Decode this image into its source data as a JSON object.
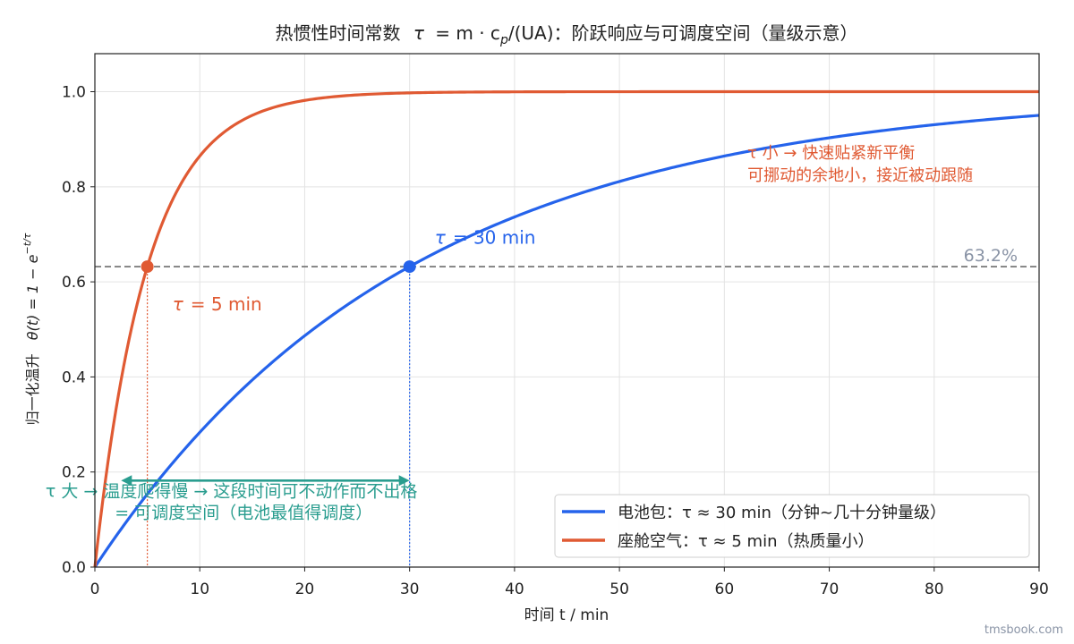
{
  "chart_data": {
    "type": "line",
    "title": "热惯性时间常数 τ = m · c_p/(UA)：阶跃响应与可调度空间（量级示意）",
    "title_parts": {
      "prefix": "热惯性时间常数",
      "tau": "τ",
      "eq": "= m · c",
      "sub": "p",
      "suffix": "/(UA)：阶跃响应与可调度空间（量级示意）"
    },
    "xlabel": "时间 t / min",
    "ylabel": "归一化温升  θ(t) = 1 − e^{−t/τ}",
    "ylabel_parts": {
      "main": "归一化温升",
      "formula": "θ(t) = 1 − e",
      "exp": "−t/τ"
    },
    "xlim": [
      0,
      90
    ],
    "ylim": [
      0,
      1.08
    ],
    "xticks": [
      0,
      10,
      20,
      30,
      40,
      50,
      60,
      70,
      80,
      90
    ],
    "yticks": [
      0.0,
      0.2,
      0.4,
      0.6,
      0.8,
      1.0
    ],
    "ytick_labels": [
      "0.0",
      "0.2",
      "0.4",
      "0.6",
      "0.8",
      "1.0"
    ],
    "grid": true,
    "legend_position": "bottom-right",
    "series": [
      {
        "name": "电池包：τ ≈ 30 min（分钟~几十分钟量级）",
        "tau": 30,
        "color": "#2563eb",
        "formula": "1 - exp(-t/30)"
      },
      {
        "name": "座舱空气：τ ≈ 5 min（热质量小）",
        "tau": 5,
        "color": "#e05a33",
        "formula": "1 - exp(-t/5)"
      }
    ],
    "reference_line": {
      "y": 0.632,
      "label": "63.2%",
      "color": "#777777"
    },
    "markers": [
      {
        "x": 5,
        "y": 0.632,
        "color": "#e05a33",
        "label": "τ = 5 min"
      },
      {
        "x": 30,
        "y": 0.632,
        "color": "#2563eb",
        "label": "τ = 30 min"
      }
    ],
    "annotations": {
      "small_tau": [
        "τ 小 → 快速贴紧新平衡",
        "可挪动的余地小，接近被动跟随"
      ],
      "large_tau": [
        "τ 大 → 温度爬得慢 → 这段时间可不动作而不出格",
        "= 可调度空间（电池最值得调度）"
      ],
      "arrow_span": [
        2.5,
        30
      ],
      "arrow_y": 0.182,
      "large_tau_color": "#2a9d8f",
      "small_tau_color": "#e05a33"
    }
  },
  "watermark": "tmsbook.com"
}
